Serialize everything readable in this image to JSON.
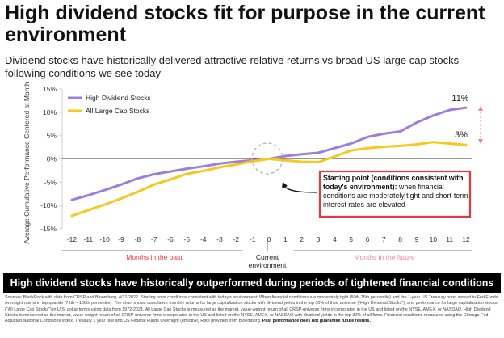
{
  "header": {
    "title": "High dividend stocks fit for purpose in the current environment",
    "subtitle": "Dividend stocks have historically delivered attractive relative returns vs broad US large cap stocks following conditions we see today"
  },
  "chart_data": {
    "type": "line",
    "title": "",
    "ylabel": "Average Cumulative Performance Centered at Month 0",
    "xlabel": "",
    "x": [
      -12,
      -11,
      -10,
      -9,
      -8,
      -7,
      -6,
      -5,
      -4,
      -3,
      -2,
      -1,
      0,
      1,
      2,
      3,
      4,
      5,
      6,
      7,
      8,
      9,
      10,
      11,
      12
    ],
    "x_tick_labels": [
      "-12",
      "-11",
      "-10",
      "-9",
      "-8",
      "-7",
      "-6",
      "-5",
      "-4",
      "-3",
      "-2",
      "-1",
      "0",
      "1",
      "2",
      "3",
      "4",
      "5",
      "6",
      "7",
      "8",
      "9",
      "10",
      "11",
      "12"
    ],
    "ylim": [
      -15,
      15
    ],
    "y_ticks": [
      -15,
      -10,
      -5,
      0,
      5,
      10,
      15
    ],
    "y_tick_labels": [
      "-15%",
      "-10%",
      "-5%",
      "0%",
      "5%",
      "10%",
      "15%"
    ],
    "grid": false,
    "legend_position": "top-left",
    "series": [
      {
        "name": "High Dividend Stocks",
        "color": "#9b7fe0",
        "values": [
          -8.8,
          -7.8,
          -6.7,
          -5.5,
          -4.2,
          -3.3,
          -2.7,
          -2.1,
          -1.6,
          -1.0,
          -0.6,
          -0.3,
          0,
          0.6,
          1.0,
          1.3,
          2.3,
          3.3,
          4.7,
          5.4,
          5.9,
          7.8,
          9.3,
          10.5,
          11.0
        ]
      },
      {
        "name": "All Large Cap Stocks",
        "color": "#f8c91c",
        "values": [
          -12.2,
          -11.0,
          -9.8,
          -8.5,
          -7.1,
          -5.5,
          -4.4,
          -3.2,
          -2.6,
          -1.8,
          -1.2,
          -0.5,
          0,
          -0.3,
          -0.6,
          -0.7,
          0.5,
          1.8,
          2.3,
          2.6,
          2.8,
          3.1,
          3.6,
          3.3,
          3.0
        ]
      }
    ],
    "annotations": {
      "end_label_high": "11%",
      "end_label_large": "3%",
      "callout_bold": "Starting point (conditions consistent with today's environment):",
      "callout_text": " when financial conditions are moderately tight and short-term interest rates are elevated",
      "past_label": "Months in the past",
      "current_label": "Current environment",
      "future_label": "Months in the future",
      "past_color": "#e53940",
      "future_color": "#f2849b",
      "callout_border": "#e53940",
      "gap_arrow_color": "#f2849b"
    }
  },
  "banner": {
    "text": "High dividend stocks have historically outperformed during periods of tightened financial conditions"
  },
  "footnote": {
    "text": "Sources: BlackRock with data from CRSP and Bloomberg, 4/31/2022. Starting point conditions consistent with today's environment: When financial conditions are moderately tight (50th-75th percentile) and the 1-year US Treasury bond spread to Fed Funds overnight rate is in top quartile (75th – 100th percentile). The chart shows cumulative monthly returns for large capitalization stocks with dividend yields in the top 30% of their universe (\"High Dividend Stocks\"), and performance for large capitalization stocks (\"All Large Cap Stocks\") in U.S. dollar terms using data from 1972-2021. All Large Cap Stocks is measured as the market, value-weight return of all CRSP-universe firms incorporated in the US and listed on the NYSE, AMEX, or NASDAQ. High Dividend Stocks is measured as the market, value-weight return of all CRSP-universe firms incorporated in the US and listed on the NYSE, AMEX, or NASDAQ with dividend yields in the top 30% of all firms. Financial conditions measured using the Chicago Fed Adjusted National Conditions Index; Treasury 1 year rate and US Federal Funds Overnight (effective) Rate provided from Bloomberg.",
    "bold": "Past performance does not guarantee future results."
  }
}
